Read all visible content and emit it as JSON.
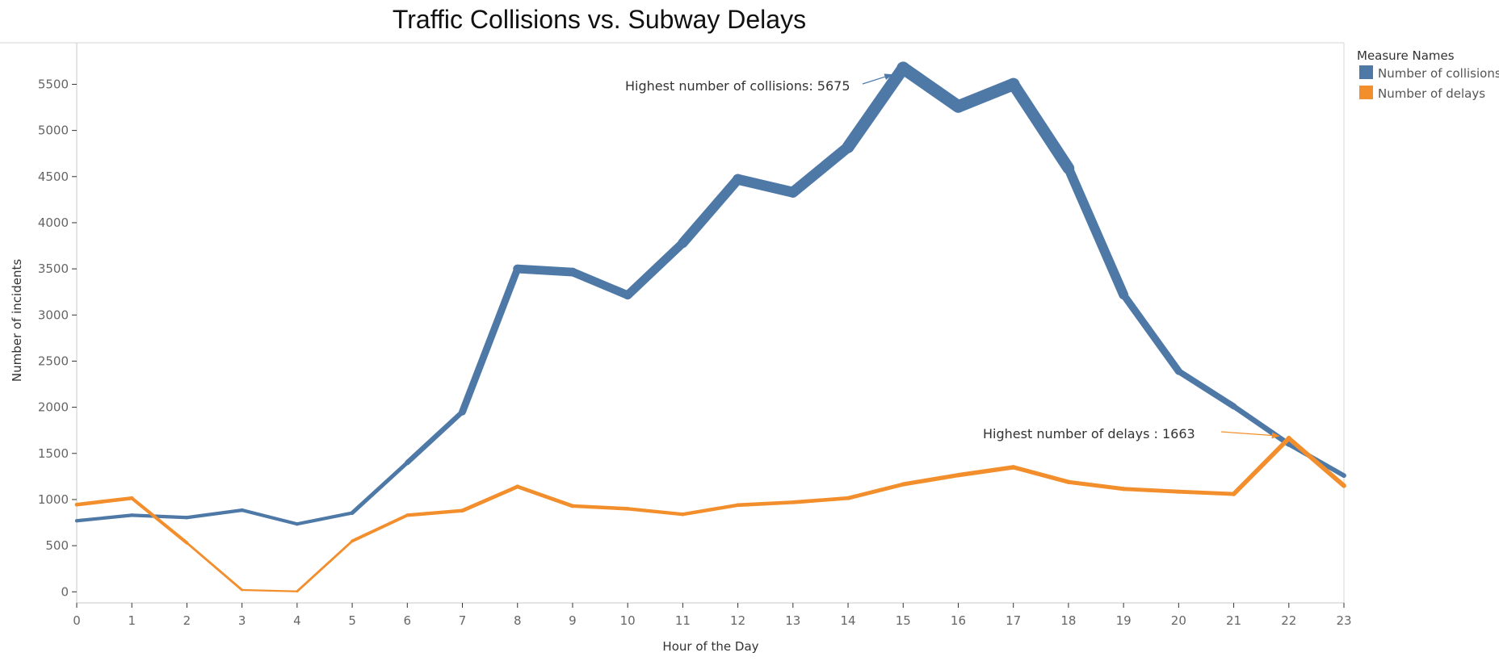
{
  "chart_data": {
    "type": "line",
    "title": "Traffic Collisions vs. Subway Delays",
    "xlabel": "Hour of the Day",
    "ylabel": "Number of incidents",
    "x": [
      0,
      1,
      2,
      3,
      4,
      5,
      6,
      7,
      8,
      9,
      10,
      11,
      12,
      13,
      14,
      15,
      16,
      17,
      18,
      19,
      20,
      21,
      22,
      23
    ],
    "yticks": [
      0,
      500,
      1000,
      1500,
      2000,
      2500,
      3000,
      3500,
      4000,
      4500,
      5000,
      5500
    ],
    "ylim": [
      -120,
      5950
    ],
    "legend": {
      "title": "Measure Names",
      "placement": "right"
    },
    "series": [
      {
        "name": "Number of collisions",
        "color": "#4e79a7",
        "values": [
          770,
          830,
          805,
          885,
          735,
          855,
          1400,
          1950,
          3500,
          3465,
          3215,
          3780,
          4470,
          4330,
          4820,
          5675,
          5260,
          5500,
          4590,
          3220,
          2390,
          2010,
          1600,
          1260
        ]
      },
      {
        "name": "Number of delays",
        "color": "#f28e2b",
        "values": [
          945,
          1015,
          530,
          20,
          5,
          550,
          830,
          880,
          1140,
          930,
          900,
          840,
          940,
          970,
          1015,
          1165,
          1265,
          1350,
          1190,
          1115,
          1085,
          1060,
          1663,
          1150
        ]
      }
    ],
    "annotations": [
      {
        "text": "Highest number of collisions: 5675",
        "series": 0,
        "x": 15
      },
      {
        "text": "Highest number of delays : 1663",
        "series": 1,
        "x": 22
      }
    ]
  }
}
